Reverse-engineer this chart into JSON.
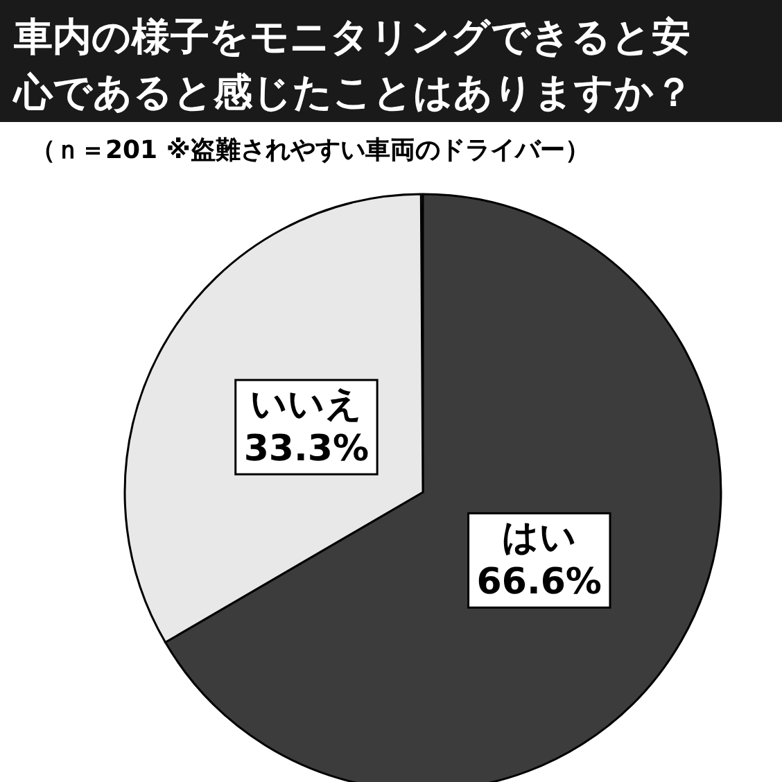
{
  "chart_data": {
    "type": "pie",
    "title": "車内の様子をモニタリングできると安心であると感じたことはありますか？",
    "subtitle": "（ｎ＝201 ※盗難されやすい車両のドライバー）",
    "categories": [
      "はい",
      "いいえ"
    ],
    "values": [
      66.6,
      33.3
    ],
    "value_labels": [
      "66.6%",
      "33.3%"
    ],
    "colors": [
      "#3c3c3c",
      "#e8e8e8"
    ]
  }
}
